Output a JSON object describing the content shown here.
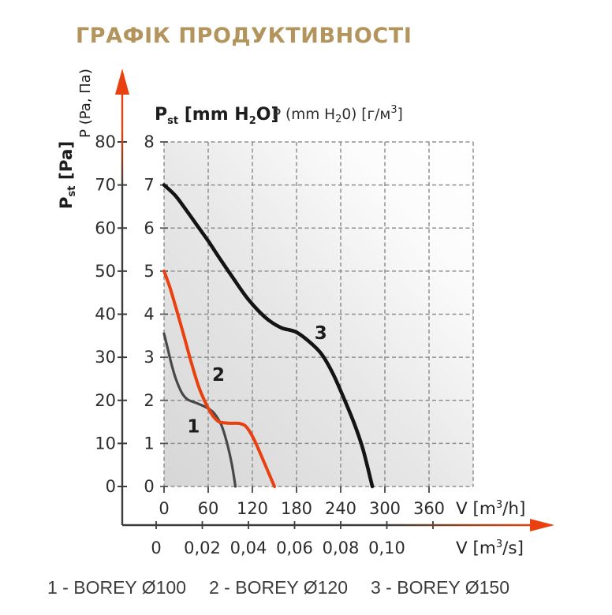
{
  "title": "ГРАФІК ПРОДУКТИВНОСТІ",
  "colors": {
    "title": "#b2945c",
    "accent_red": "#e8400e",
    "axis": "#3c3c3c",
    "grid": "#8f8f8f",
    "curve1": "#484848",
    "curve2": "#e8400e",
    "curve3": "#141414"
  },
  "header": {
    "bold": {
      "base": "P",
      "sub": "st",
      "mid": " [mm H",
      "sub2": "2",
      "close": "O]"
    },
    "normal": {
      "base": "P (mm H",
      "sub": "2",
      "mid": "0) [г/м",
      "sup": "3",
      "close": "]"
    }
  },
  "left_axis": {
    "rotated_label": "P (Pa, Па)",
    "rotated_label_bold": {
      "base": "P",
      "sub": "st",
      "close": " [Pa]"
    }
  },
  "x_axis_h": {
    "unit": {
      "base": "V [m",
      "sup": "3",
      "close": "/h]"
    }
  },
  "x_axis_s": {
    "unit": {
      "base": "V [m",
      "sup": "3",
      "close": "/s]"
    }
  },
  "legend": {
    "items": [
      "1 - BOREY Ø100",
      "2 - BOREY Ø120",
      "3 - BOREY Ø150"
    ]
  },
  "chart_data": {
    "type": "line",
    "title": "ГРАФІК ПРОДУКТИВНОСТІ",
    "grid": "dashed",
    "plot_background": "diagonal gray-to-white gradient",
    "axes": {
      "pressure_pa": {
        "label": "Pst [Pa]",
        "label2": "P (Pa, Па)",
        "range": [
          0,
          80
        ],
        "ticks": [
          0,
          10,
          20,
          30,
          40,
          50,
          60,
          70,
          80
        ]
      },
      "pressure_mm": {
        "label": "Pst [mm H2O]",
        "label2": "P (mm H20) [г/м³]",
        "range": [
          0,
          8
        ],
        "ticks": [
          0,
          1,
          2,
          3,
          4,
          5,
          6,
          7,
          8
        ]
      },
      "flow_m3h": {
        "label": "V [m³/h]",
        "range": [
          0,
          420
        ],
        "ticks": [
          0,
          60,
          120,
          180,
          240,
          300,
          360
        ]
      },
      "flow_m3s": {
        "label": "V [m³/s]",
        "tick_labels": [
          "0",
          "0,02",
          "0,04",
          "0,06",
          "0,08",
          "0,10"
        ]
      }
    },
    "series": [
      {
        "name": "1 - BOREY Ø100",
        "label": "1",
        "color": "#484848",
        "width": 3.2,
        "label_pos": [
          40,
          1.25
        ],
        "points": [
          [
            0,
            3.55
          ],
          [
            5,
            3.2
          ],
          [
            10,
            2.85
          ],
          [
            16,
            2.5
          ],
          [
            24,
            2.18
          ],
          [
            32,
            2.02
          ],
          [
            45,
            1.93
          ],
          [
            58,
            1.83
          ],
          [
            68,
            1.7
          ],
          [
            78,
            1.42
          ],
          [
            86,
            0.98
          ],
          [
            92,
            0.52
          ],
          [
            97,
            0
          ]
        ]
      },
      {
        "name": "2 - BOREY Ø120",
        "label": "2",
        "color": "#e8400e",
        "width": 4,
        "label_pos": [
          74,
          2.45
        ],
        "points": [
          [
            0,
            5.0
          ],
          [
            8,
            4.62
          ],
          [
            17,
            4.1
          ],
          [
            27,
            3.5
          ],
          [
            37,
            2.88
          ],
          [
            47,
            2.32
          ],
          [
            57,
            1.92
          ],
          [
            66,
            1.65
          ],
          [
            75,
            1.5
          ],
          [
            88,
            1.47
          ],
          [
            103,
            1.46
          ],
          [
            112,
            1.38
          ],
          [
            122,
            1.1
          ],
          [
            132,
            0.72
          ],
          [
            142,
            0.32
          ],
          [
            150,
            0
          ]
        ]
      },
      {
        "name": "3 - BOREY Ø150",
        "label": "3",
        "color": "#141414",
        "width": 4.6,
        "label_pos": [
          213,
          3.42
        ],
        "points": [
          [
            0,
            7.0
          ],
          [
            15,
            6.76
          ],
          [
            30,
            6.42
          ],
          [
            45,
            6.06
          ],
          [
            60,
            5.7
          ],
          [
            77,
            5.26
          ],
          [
            93,
            4.86
          ],
          [
            111,
            4.42
          ],
          [
            127,
            4.1
          ],
          [
            143,
            3.85
          ],
          [
            160,
            3.68
          ],
          [
            180,
            3.58
          ],
          [
            200,
            3.32
          ],
          [
            215,
            3.05
          ],
          [
            230,
            2.6
          ],
          [
            245,
            2.02
          ],
          [
            258,
            1.48
          ],
          [
            270,
            0.88
          ],
          [
            283,
            0
          ]
        ]
      }
    ]
  }
}
